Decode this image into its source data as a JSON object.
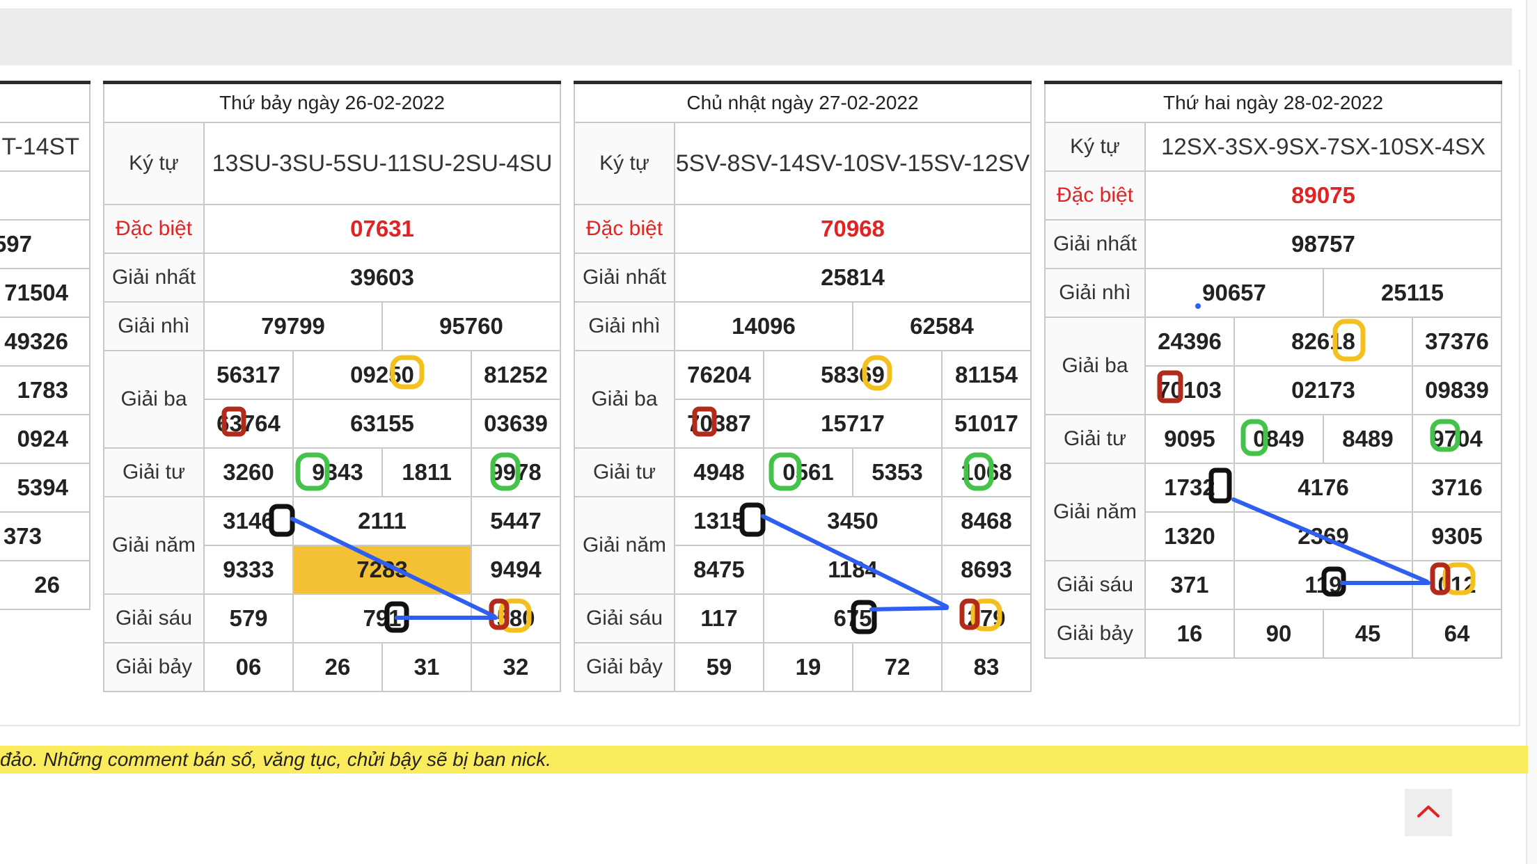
{
  "notice": "đảo. Những comment bán số, văng tục, chửi bậy sẽ bị ban nick.",
  "labels": {
    "ky_tu": "Ký tự",
    "dac_biet": "Đặc biệt",
    "giai_nhat": "Giải nhất",
    "giai_nhi": "Giải nhì",
    "giai_ba": "Giải ba",
    "giai_tu": "Giải tư",
    "giai_nam": "Giải năm",
    "giai_sau": "Giải sáu",
    "giai_bay": "Giải bảy"
  },
  "partial": {
    "header_fragment": "T-14ST",
    "values": [
      "597",
      "71504",
      "49326",
      "1783",
      "0924",
      "5394",
      "373",
      "26"
    ]
  },
  "days": [
    {
      "title": "Thứ bảy ngày 26-02-2022",
      "ky_tu": "13SU-3SU-5SU-11SU-2SU-4SU",
      "dac_biet": "07631",
      "giai_nhat": "39603",
      "giai_nhi": [
        "79799",
        "95760"
      ],
      "giai_ba": [
        "56317",
        "09250",
        "81252",
        "63764",
        "63155",
        "03639"
      ],
      "giai_tu": [
        "3260",
        "9343",
        "1811",
        "9978"
      ],
      "giai_nam": [
        "3146",
        "2111",
        "5447",
        "9333",
        "7283",
        "9494"
      ],
      "giai_sau": [
        "579",
        "791",
        "580"
      ],
      "giai_bay": [
        "06",
        "26",
        "31",
        "32"
      ]
    },
    {
      "title": "Chủ nhật ngày 27-02-2022",
      "ky_tu": "5SV-8SV-14SV-10SV-15SV-12SV",
      "dac_biet": "70968",
      "giai_nhat": "25814",
      "giai_nhi": [
        "14096",
        "62584"
      ],
      "giai_ba": [
        "76204",
        "58369",
        "81154",
        "70387",
        "15717",
        "51017"
      ],
      "giai_tu": [
        "4948",
        "0561",
        "5353",
        "1068"
      ],
      "giai_nam": [
        "1315",
        "3450",
        "8468",
        "8475",
        "1184",
        "8693"
      ],
      "giai_sau": [
        "117",
        "675",
        "279"
      ],
      "giai_bay": [
        "59",
        "19",
        "72",
        "83"
      ]
    },
    {
      "title": "Thứ hai ngày 28-02-2022",
      "ky_tu": "12SX-3SX-9SX-7SX-10SX-4SX",
      "dac_biet": "89075",
      "giai_nhat": "98757",
      "giai_nhi": [
        "90657",
        "25115"
      ],
      "giai_ba": [
        "24396",
        "82618",
        "37376",
        "70103",
        "02173",
        "09839"
      ],
      "giai_tu": [
        "9095",
        "0849",
        "8489",
        "9704"
      ],
      "giai_nam": [
        "1732",
        "4176",
        "3716",
        "1320",
        "2369",
        "9305"
      ],
      "giai_sau": [
        "371",
        "119",
        "012"
      ],
      "giai_bay": [
        "16",
        "90",
        "45",
        "64"
      ]
    }
  ],
  "colors": {
    "red_text": "#e02424",
    "highlight": "#f4c136",
    "notice_bg": "#fbec5d",
    "line": "#2f5ff0",
    "mark_green": "#45c24a",
    "mark_yellow": "#f4c020",
    "mark_red": "#b12a1a",
    "mark_black": "#111111"
  },
  "icons": {
    "back_to_top": "chevron-up-icon"
  }
}
